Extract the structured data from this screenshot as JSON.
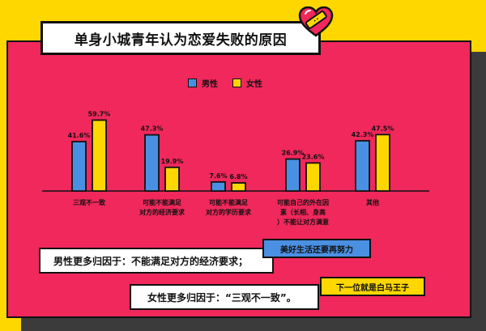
{
  "title": "单身小城青年认为恋爱失败的原因",
  "colors": {
    "male": "#4A90E2",
    "female": "#FFD700",
    "panel": "#F0285C",
    "background": "#FFD700"
  },
  "chart_data": {
    "type": "bar",
    "categories": [
      [
        "三观不一致"
      ],
      [
        "可能不能满足",
        "对方的经济要求"
      ],
      [
        "可能不能满足",
        "对方的学历要求"
      ],
      [
        "可能自己的外在因",
        "素（长相、身高",
        "）不能让对方满意"
      ],
      [
        "其他"
      ]
    ],
    "series": [
      {
        "name": "男性",
        "values": [
          41.6,
          47.3,
          7.6,
          26.9,
          42.3
        ],
        "labels": [
          "41.6%",
          "47.3%",
          "7.6%",
          "26.9%",
          "42.3%"
        ]
      },
      {
        "name": "女性",
        "values": [
          59.7,
          19.9,
          6.8,
          23.6,
          47.5
        ],
        "labels": [
          "59.7%",
          "19.9%",
          "6.8%",
          "23.6%",
          "47.5%"
        ]
      }
    ],
    "ylim": [
      0,
      60
    ],
    "legend_position": "top-center",
    "grid": false
  },
  "notes": {
    "male_text": "男性更多归因于：不能满足对方的经济要求；",
    "female_text": "女性更多归因于：“三观不一致”。",
    "blue_sticker": "美好生活还要再努力",
    "yellow_sticker": "下一位就是白马王子"
  }
}
